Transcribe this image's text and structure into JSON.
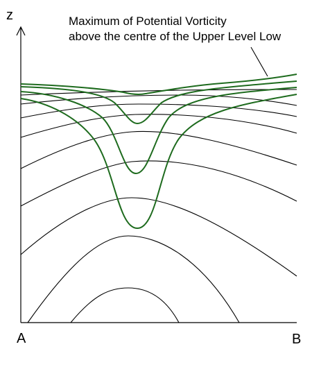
{
  "labels": {
    "z_axis": "z",
    "point_a": "A",
    "point_b": "B"
  },
  "annotation": {
    "line1": "Maximum of Potential Vorticity",
    "line2": "above the centre of the Upper Level Low"
  },
  "colors": {
    "isentropes": "#000000",
    "pv_contours": "#1e6b1e",
    "axes": "#000000"
  }
}
